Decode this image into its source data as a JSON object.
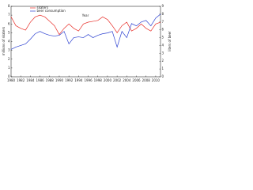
{
  "chart_data": {
    "type": "line",
    "x_label": "Year",
    "y_label": "millions of skaters",
    "y2_label": "liters of beer",
    "x": [
      1980,
      1981,
      1982,
      1983,
      1984,
      1985,
      1986,
      1987,
      1988,
      1989,
      1990,
      1991,
      1992,
      1993,
      1994,
      1995,
      1996,
      1997,
      1998,
      1999,
      2000,
      2001,
      2002,
      2003,
      2004,
      2005,
      2006,
      2007,
      2008,
      2009,
      2010,
      2011
    ],
    "xlim": [
      1980,
      2011
    ],
    "xticks": [
      1980,
      1982,
      1984,
      1986,
      1988,
      1990,
      1992,
      1994,
      1996,
      1998,
      2000,
      2002,
      2004,
      2006,
      2008,
      2010
    ],
    "ylim": [
      0,
      8
    ],
    "yticks": [
      0,
      1,
      2,
      3,
      4,
      5,
      6,
      7,
      8
    ],
    "y2lim": [
      0,
      9
    ],
    "y2ticks": [
      0,
      1,
      2,
      3,
      4,
      5,
      6,
      7,
      8,
      9
    ],
    "legend": "upper left",
    "series": [
      {
        "name": "skaters",
        "color": "#e8302a",
        "values": [
          6.8,
          5.8,
          5.5,
          5.3,
          6.2,
          6.8,
          7.0,
          6.8,
          6.3,
          5.8,
          4.8,
          5.5,
          6.0,
          5.5,
          5.2,
          6.0,
          6.2,
          6.3,
          6.4,
          6.8,
          6.5,
          5.8,
          5.0,
          5.8,
          6.2,
          5.2,
          5.5,
          6.0,
          5.5,
          5.2,
          6.0,
          6.2
        ]
      },
      {
        "name": "beer consumption",
        "color": "#2a3fd0",
        "axis": "y2",
        "values": [
          3.5,
          3.8,
          4.0,
          4.2,
          4.8,
          5.5,
          5.8,
          5.5,
          5.3,
          5.2,
          5.3,
          5.8,
          4.2,
          5.0,
          5.1,
          5.0,
          5.4,
          5.0,
          5.3,
          5.5,
          5.6,
          5.8,
          3.8,
          5.8,
          5.0,
          6.8,
          6.5,
          7.0,
          7.2,
          6.5,
          7.5,
          8.0
        ]
      }
    ]
  }
}
